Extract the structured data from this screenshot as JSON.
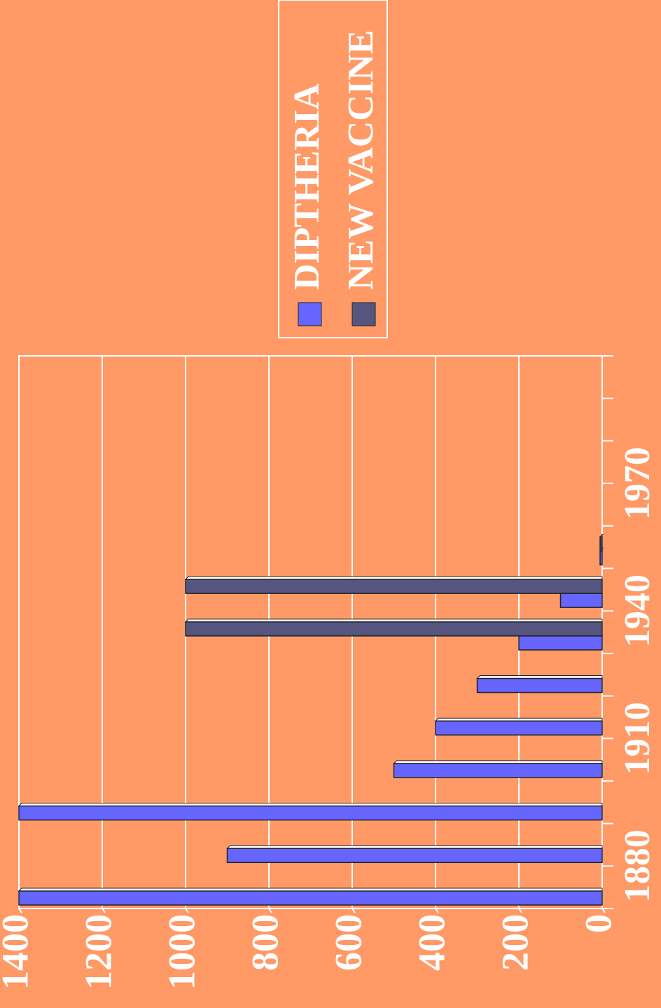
{
  "chart_data": {
    "type": "bar",
    "categories": [
      "1880",
      null,
      null,
      "1910",
      null,
      null,
      "1940",
      null,
      null,
      "1970",
      null,
      null,
      null
    ],
    "series": [
      {
        "name": "DIPTHERIA",
        "color": "#6666ff",
        "values": [
          1400,
          900,
          1400,
          500,
          400,
          300,
          200,
          100,
          5,
          null,
          null,
          null,
          null
        ]
      },
      {
        "name": "NEW VACCINE",
        "color": "#55557f",
        "values": [
          null,
          null,
          null,
          null,
          null,
          null,
          1000,
          1000,
          5,
          null,
          null,
          null,
          null
        ]
      }
    ],
    "ylim": [
      0,
      1400
    ],
    "yticks": [
      0,
      200,
      400,
      600,
      800,
      1000,
      1200,
      1400
    ],
    "grid": true
  }
}
